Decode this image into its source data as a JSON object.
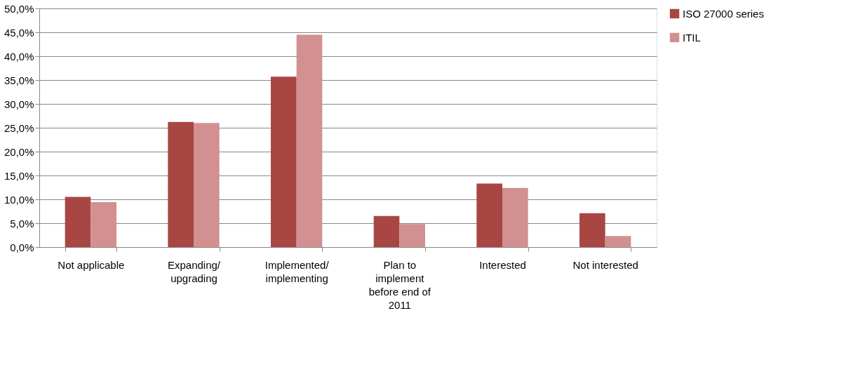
{
  "chart_data": {
    "type": "bar",
    "categories": [
      "Not applicable",
      "Expanding/ upgrading",
      "Implemented/ implementing",
      "Plan to implement before end of 2011",
      "Interested",
      "Not interested"
    ],
    "series": [
      {
        "name": "ISO 27000 series",
        "color": "#a84644",
        "values": [
          10.5,
          26.2,
          35.7,
          6.5,
          13.3,
          7.1
        ]
      },
      {
        "name": "ITIL",
        "color": "#d29090",
        "values": [
          9.4,
          26.0,
          44.5,
          4.8,
          12.4,
          2.3
        ]
      }
    ],
    "ylim": [
      0,
      50
    ],
    "yticks": [
      {
        "value": 0,
        "label": "0,0%"
      },
      {
        "value": 5,
        "label": "5,0%"
      },
      {
        "value": 10,
        "label": "10,0%"
      },
      {
        "value": 15,
        "label": "15,0%"
      },
      {
        "value": 20,
        "label": "20,0%"
      },
      {
        "value": 25,
        "label": "25,0%"
      },
      {
        "value": 30,
        "label": "30,0%"
      },
      {
        "value": 35,
        "label": "35,0%"
      },
      {
        "value": 40,
        "label": "40,0%"
      },
      {
        "value": 45,
        "label": "45,0%"
      },
      {
        "value": 50,
        "label": "50,0%"
      }
    ],
    "grid": "y",
    "legend": "right"
  }
}
